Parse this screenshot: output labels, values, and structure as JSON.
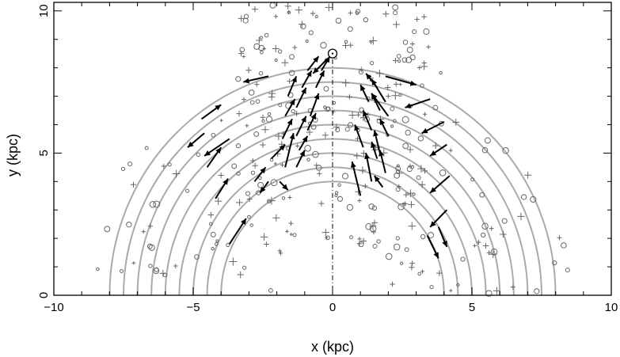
{
  "chart_data": {
    "type": "scatter",
    "xlabel": "x (kpc)",
    "ylabel": "y (kpc)",
    "xlim": [
      -10,
      10
    ],
    "ylim": [
      0,
      10.3
    ],
    "x_ticks": [
      -10,
      -5,
      0,
      5,
      10
    ],
    "y_ticks": [
      0,
      5,
      10
    ],
    "x_tick_labels": [
      "−10",
      "−5",
      "0",
      "5",
      "10"
    ],
    "y_tick_labels": [
      "0",
      "5",
      "10"
    ],
    "sun": {
      "x": 0,
      "y": 8.5
    },
    "center_line": {
      "x": 0,
      "y_range": [
        0,
        8.3
      ]
    },
    "arc_radii": [
      4.0,
      4.5,
      5.0,
      5.5,
      6.0,
      6.5,
      7.0,
      7.5,
      8.0
    ],
    "colors": {
      "arcs": "#aaaaaa",
      "points": "#666666",
      "arrows": "#000000",
      "axes": "#000000"
    },
    "vectors": [
      {
        "x": -3.7,
        "y": 1.8,
        "dx": 0.6,
        "dy": 0.9
      },
      {
        "x": -4.2,
        "y": 3.4,
        "dx": 0.45,
        "dy": 0.7
      },
      {
        "x": -4.5,
        "y": 4.5,
        "dx": 0.5,
        "dy": 0.7
      },
      {
        "x": -4.6,
        "y": 5.7,
        "dx": -0.6,
        "dy": -0.5
      },
      {
        "x": -3.7,
        "y": 5.5,
        "dx": -0.9,
        "dy": -0.6
      },
      {
        "x": -4.7,
        "y": 6.2,
        "dx": 0.7,
        "dy": 0.5
      },
      {
        "x": -2.3,
        "y": 7.7,
        "dx": -0.9,
        "dy": -0.2
      },
      {
        "x": -2.8,
        "y": 4.0,
        "dx": 0.4,
        "dy": 0.5
      },
      {
        "x": -2.3,
        "y": 4.0,
        "dx": -0.3,
        "dy": -0.4
      },
      {
        "x": -2.2,
        "y": 4.8,
        "dx": 0.5,
        "dy": 0.5
      },
      {
        "x": -1.9,
        "y": 4.0,
        "dx": 0.3,
        "dy": -0.3
      },
      {
        "x": -1.7,
        "y": 4.5,
        "dx": 0.3,
        "dy": 1.2
      },
      {
        "x": -1.3,
        "y": 4.5,
        "dx": 0.3,
        "dy": 0.6
      },
      {
        "x": -1.2,
        "y": 5.1,
        "dx": 0.3,
        "dy": 0.5
      },
      {
        "x": -1.8,
        "y": 5.5,
        "dx": 0.35,
        "dy": 0.7
      },
      {
        "x": -1.3,
        "y": 5.6,
        "dx": 0.35,
        "dy": 0.7
      },
      {
        "x": -0.9,
        "y": 5.8,
        "dx": 0.3,
        "dy": 0.6
      },
      {
        "x": -1.7,
        "y": 6.3,
        "dx": 0.35,
        "dy": 0.6
      },
      {
        "x": -1.3,
        "y": 6.6,
        "dx": 0.35,
        "dy": 0.7
      },
      {
        "x": -0.8,
        "y": 6.3,
        "dx": 0.3,
        "dy": 0.8
      },
      {
        "x": -1.6,
        "y": 7.0,
        "dx": 0.3,
        "dy": 0.7
      },
      {
        "x": -1.1,
        "y": 7.3,
        "dx": 0.35,
        "dy": 0.6
      },
      {
        "x": -0.6,
        "y": 7.3,
        "dx": 0.3,
        "dy": 0.6
      },
      {
        "x": -0.9,
        "y": 7.9,
        "dx": 0.4,
        "dy": 0.5
      },
      {
        "x": -0.4,
        "y": 7.9,
        "dx": 0.3,
        "dy": 0.5
      },
      {
        "x": -0.2,
        "y": 8.3,
        "dx": -0.5,
        "dy": -0.5
      },
      {
        "x": 1.0,
        "y": 3.5,
        "dx": -0.3,
        "dy": 1.2
      },
      {
        "x": 1.4,
        "y": 4.0,
        "dx": -0.2,
        "dy": 1.0
      },
      {
        "x": 1.7,
        "y": 5.0,
        "dx": -0.2,
        "dy": 0.8
      },
      {
        "x": 1.1,
        "y": 5.2,
        "dx": -0.3,
        "dy": 0.8
      },
      {
        "x": 1.4,
        "y": 5.8,
        "dx": -0.3,
        "dy": 0.7
      },
      {
        "x": 1.9,
        "y": 4.3,
        "dx": -0.2,
        "dy": 0.8
      },
      {
        "x": 1.7,
        "y": 6.5,
        "dx": -0.3,
        "dy": 0.6
      },
      {
        "x": 1.3,
        "y": 6.8,
        "dx": -0.3,
        "dy": 0.6
      },
      {
        "x": 2.0,
        "y": 6.3,
        "dx": -0.6,
        "dy": 0.8
      },
      {
        "x": 1.6,
        "y": 7.3,
        "dx": -0.4,
        "dy": 0.5
      },
      {
        "x": 1.9,
        "y": 6.8,
        "dx": -0.5,
        "dy": 0.8
      },
      {
        "x": 2.0,
        "y": 5.6,
        "dx": -0.3,
        "dy": 0.6
      },
      {
        "x": 1.6,
        "y": 4.8,
        "dx": -0.2,
        "dy": 0.6
      },
      {
        "x": 1.8,
        "y": 3.8,
        "dx": -0.3,
        "dy": 0.4
      },
      {
        "x": 1.9,
        "y": 7.7,
        "dx": 1.1,
        "dy": -0.3
      },
      {
        "x": 3.5,
        "y": 6.9,
        "dx": -0.9,
        "dy": -0.3
      },
      {
        "x": 4.0,
        "y": 6.1,
        "dx": -0.8,
        "dy": -0.4
      },
      {
        "x": 4.1,
        "y": 5.3,
        "dx": -0.6,
        "dy": -0.4
      },
      {
        "x": 4.2,
        "y": 4.2,
        "dx": -0.7,
        "dy": -0.6
      },
      {
        "x": 4.1,
        "y": 3.0,
        "dx": -0.6,
        "dy": -0.6
      },
      {
        "x": 3.8,
        "y": 2.4,
        "dx": 0.3,
        "dy": -0.7
      },
      {
        "x": 3.4,
        "y": 2.1,
        "dx": 0.4,
        "dy": -0.8
      }
    ]
  }
}
